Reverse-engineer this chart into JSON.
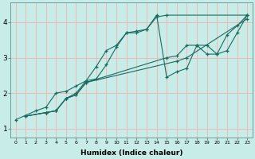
{
  "xlabel": "Humidex (Indice chaleur)",
  "xlim": [
    -0.5,
    23.5
  ],
  "ylim": [
    0.75,
    4.55
  ],
  "xticks": [
    0,
    1,
    2,
    3,
    4,
    5,
    6,
    7,
    8,
    9,
    10,
    11,
    12,
    13,
    14,
    15,
    16,
    17,
    18,
    19,
    20,
    21,
    22,
    23
  ],
  "yticks": [
    1,
    2,
    3,
    4
  ],
  "bg_color": "#c8ece8",
  "grid_color": "#f2b8b8",
  "line_color": "#1a6b60",
  "series": [
    {
      "x": [
        0,
        2,
        3,
        4,
        5,
        6,
        7,
        8,
        9,
        10,
        11,
        12,
        13,
        14,
        15,
        23
      ],
      "y": [
        1.25,
        1.5,
        1.6,
        2.0,
        2.05,
        2.2,
        2.35,
        2.75,
        3.2,
        3.35,
        3.7,
        3.75,
        3.8,
        4.15,
        4.2,
        4.2
      ]
    },
    {
      "x": [
        1,
        3,
        4,
        5,
        6,
        7,
        8,
        9,
        10,
        11,
        12,
        13,
        14,
        15,
        16,
        17,
        18,
        19,
        20,
        21,
        22,
        23
      ],
      "y": [
        1.35,
        1.45,
        1.5,
        1.85,
        2.0,
        2.35,
        2.4,
        2.8,
        3.3,
        3.7,
        3.7,
        3.8,
        4.2,
        2.45,
        2.6,
        2.7,
        3.35,
        3.35,
        3.1,
        3.65,
        3.9,
        4.2
      ]
    },
    {
      "x": [
        1,
        3,
        4,
        5,
        6,
        7,
        15,
        16,
        17,
        18,
        19,
        20,
        21,
        22,
        23
      ],
      "y": [
        1.35,
        1.45,
        1.5,
        1.85,
        1.95,
        2.3,
        3.0,
        3.05,
        3.35,
        3.35,
        3.1,
        3.1,
        3.2,
        3.7,
        4.2
      ]
    },
    {
      "x": [
        1,
        3,
        4,
        5,
        6,
        7,
        16,
        17,
        23
      ],
      "y": [
        1.35,
        1.45,
        1.5,
        1.85,
        1.95,
        2.3,
        2.9,
        3.0,
        4.1
      ]
    }
  ]
}
